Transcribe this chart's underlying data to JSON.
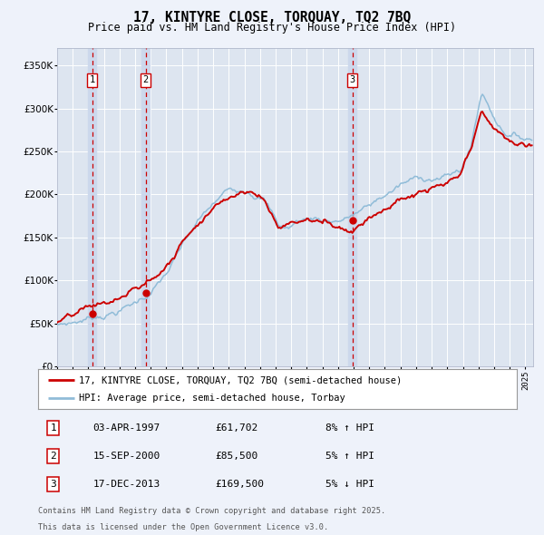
{
  "title": "17, KINTYRE CLOSE, TORQUAY, TQ2 7BQ",
  "subtitle": "Price paid vs. HM Land Registry's House Price Index (HPI)",
  "legend_property": "17, KINTYRE CLOSE, TORQUAY, TQ2 7BQ (semi-detached house)",
  "legend_hpi": "HPI: Average price, semi-detached house, Torbay",
  "sale1_date": "03-APR-1997",
  "sale1_price": 61702,
  "sale1_hpi": "8% ↑ HPI",
  "sale2_date": "15-SEP-2000",
  "sale2_price": 85500,
  "sale2_hpi": "5% ↑ HPI",
  "sale3_date": "17-DEC-2013",
  "sale3_price": 169500,
  "sale3_hpi": "5% ↓ HPI",
  "footnote1": "Contains HM Land Registry data © Crown copyright and database right 2025.",
  "footnote2": "This data is licensed under the Open Government Licence v3.0.",
  "background_color": "#eef2fa",
  "plot_bg_color": "#dde5f0",
  "grid_color": "#ffffff",
  "hpi_line_color": "#90bcd8",
  "price_line_color": "#cc0000",
  "sale_marker_color": "#cc0000",
  "vline_color": "#cc0000",
  "vline_shade_color": "#ccd8ec",
  "ylim": [
    0,
    370000
  ],
  "yticks": [
    0,
    50000,
    100000,
    150000,
    200000,
    250000,
    300000,
    350000
  ],
  "xmin": 1995.0,
  "xmax": 2025.5
}
